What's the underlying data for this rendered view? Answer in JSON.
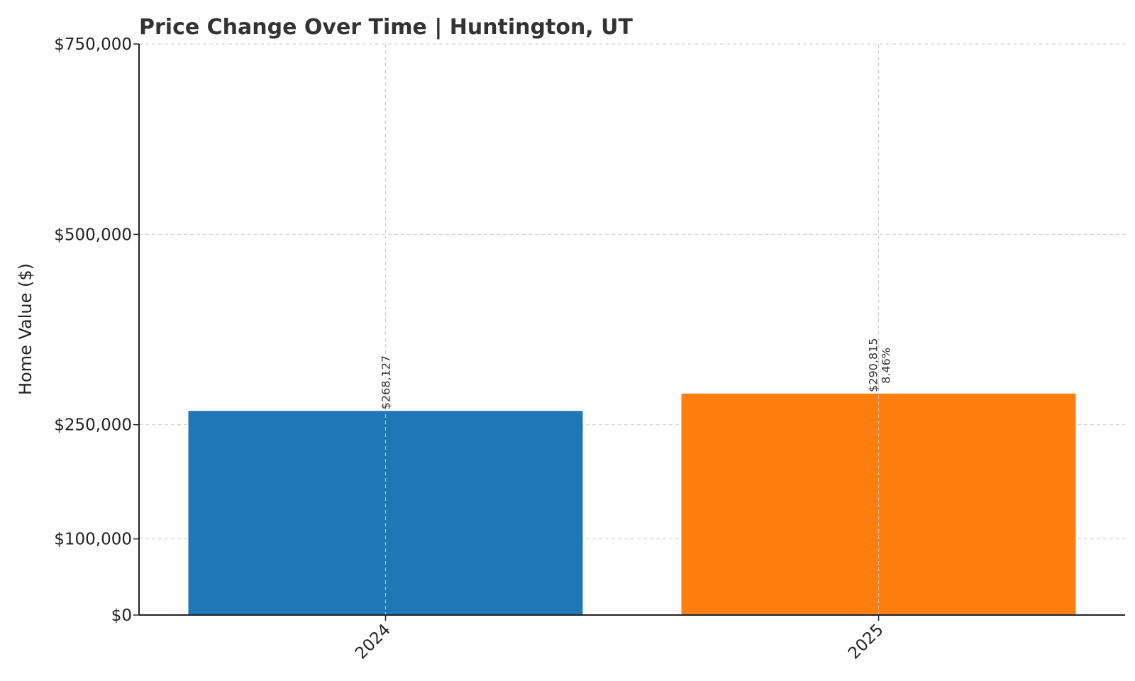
{
  "chart_data": {
    "type": "bar",
    "title": "Price Change Over Time | Huntington, UT",
    "xlabel": "",
    "ylabel": "Home Value ($)",
    "categories": [
      "2024",
      "2025"
    ],
    "values": [
      268127,
      290815
    ],
    "value_labels": [
      "$268,127",
      "$290,815"
    ],
    "change_labels": [
      "",
      "8.46%"
    ],
    "bar_colors": [
      "#1f77b4",
      "#ff7f0e"
    ],
    "yticks": [
      0,
      100000,
      250000,
      500000,
      750000
    ],
    "ytick_labels": [
      "$0",
      "$100,000",
      "$250,000",
      "$500,000",
      "$750,000"
    ],
    "ylim": [
      0,
      750000
    ],
    "grid": true
  }
}
